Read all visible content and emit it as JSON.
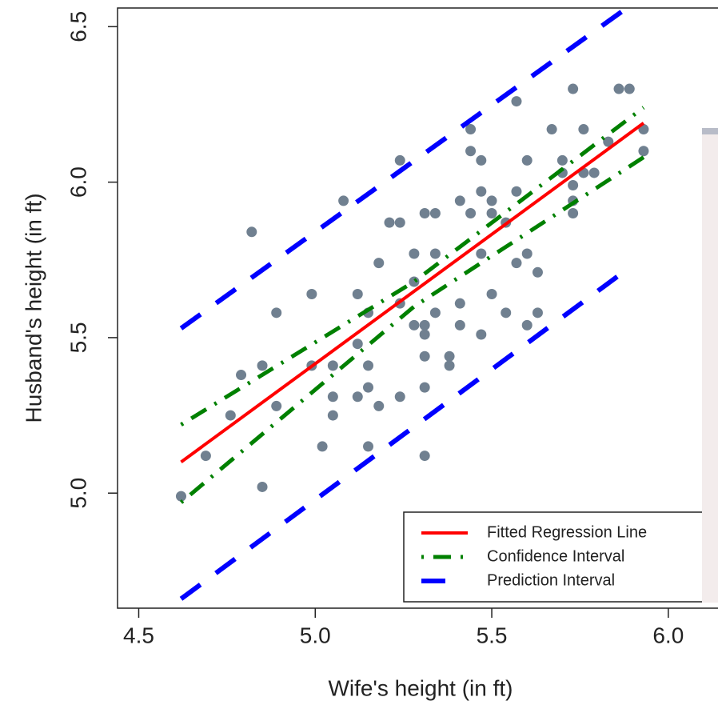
{
  "chart_data": {
    "type": "scatter",
    "x_label": "Wife's height (in ft)",
    "y_label": "Husband's height (in ft)",
    "xlim": [
      4.44,
      6.1
    ],
    "ylim": [
      4.63,
      6.56
    ],
    "xticks": [
      4.5,
      {
        "value": 5,
        "label": "5.0"
      },
      5.5,
      {
        "value": 6,
        "label": "6.0"
      }
    ],
    "yticks": [
      {
        "value": 5,
        "label": "5.0"
      },
      5.5,
      {
        "value": 6,
        "label": "6.0"
      },
      6.5
    ],
    "legend": "bottom-right",
    "series": [
      {
        "type": "scatter",
        "color": "#708090",
        "x": [
          4.62,
          4.69,
          4.76,
          4.79,
          4.82,
          4.85,
          4.85,
          4.89,
          4.89,
          4.99,
          4.99,
          5.02,
          5.05,
          5.05,
          5.05,
          5.08,
          5.12,
          5.12,
          5.12,
          5.15,
          5.15,
          5.15,
          5.15,
          5.18,
          5.18,
          5.21,
          5.24,
          5.24,
          5.24,
          5.24,
          5.28,
          5.28,
          5.28,
          5.31,
          5.31,
          5.31,
          5.31,
          5.31,
          5.31,
          5.34,
          5.34,
          5.34,
          5.38,
          5.38,
          5.41,
          5.41,
          5.41,
          5.44,
          5.44,
          5.44,
          5.47,
          5.47,
          5.47,
          5.47,
          5.5,
          5.5,
          5.5,
          5.54,
          5.54,
          5.57,
          5.57,
          5.57,
          5.6,
          5.6,
          5.6,
          5.63,
          5.63,
          5.67,
          5.7,
          5.7,
          5.73,
          5.73,
          5.73,
          5.73,
          5.76,
          5.76,
          5.79,
          5.83,
          5.86,
          5.89,
          5.93,
          5.93
        ],
        "values": [
          4.99,
          5.12,
          5.25,
          5.38,
          5.84,
          5.41,
          5.02,
          5.58,
          5.28,
          5.64,
          5.41,
          5.15,
          5.41,
          5.31,
          5.25,
          5.94,
          5.64,
          5.48,
          5.31,
          5.58,
          5.41,
          5.34,
          5.15,
          5.74,
          5.28,
          5.87,
          5.87,
          6.07,
          5.61,
          5.31,
          5.77,
          5.68,
          5.54,
          5.9,
          5.54,
          5.51,
          5.44,
          5.34,
          5.12,
          5.9,
          5.77,
          5.58,
          5.44,
          5.41,
          5.94,
          5.61,
          5.54,
          5.9,
          6.17,
          6.1,
          5.97,
          6.07,
          5.77,
          5.51,
          5.94,
          5.9,
          5.64,
          5.87,
          5.58,
          6.26,
          5.97,
          5.74,
          6.07,
          5.77,
          5.54,
          5.71,
          5.58,
          6.17,
          6.07,
          6.03,
          5.94,
          5.9,
          5.99,
          6.3,
          6.17,
          6.03,
          6.03,
          6.13,
          6.3,
          6.3,
          6.17,
          6.1
        ]
      },
      {
        "type": "line",
        "name": "Fitted Regression Line",
        "color": "#ff0000",
        "style": "solid",
        "x": [
          4.62,
          5.93
        ],
        "values": [
          5.1,
          6.19
        ]
      },
      {
        "type": "line",
        "name": "Confidence Interval",
        "color": "#008000",
        "style": "dotdash",
        "x": [
          4.62,
          5.28,
          5.93
        ],
        "values": [
          5.22,
          5.68,
          6.24
        ]
      },
      {
        "type": "line",
        "color": "#008000",
        "style": "dotdash",
        "x": [
          4.62,
          5.28,
          5.93
        ],
        "values": [
          4.97,
          5.6,
          6.08
        ]
      },
      {
        "type": "line",
        "name": "Prediction Interval",
        "color": "#0000ff",
        "style": "dash",
        "x": [
          4.62,
          5.87
        ],
        "values": [
          5.53,
          6.55
        ]
      },
      {
        "type": "line",
        "color": "#0000ff",
        "style": "dash",
        "x": [
          4.62,
          5.86
        ],
        "values": [
          4.66,
          5.7
        ]
      }
    ]
  }
}
